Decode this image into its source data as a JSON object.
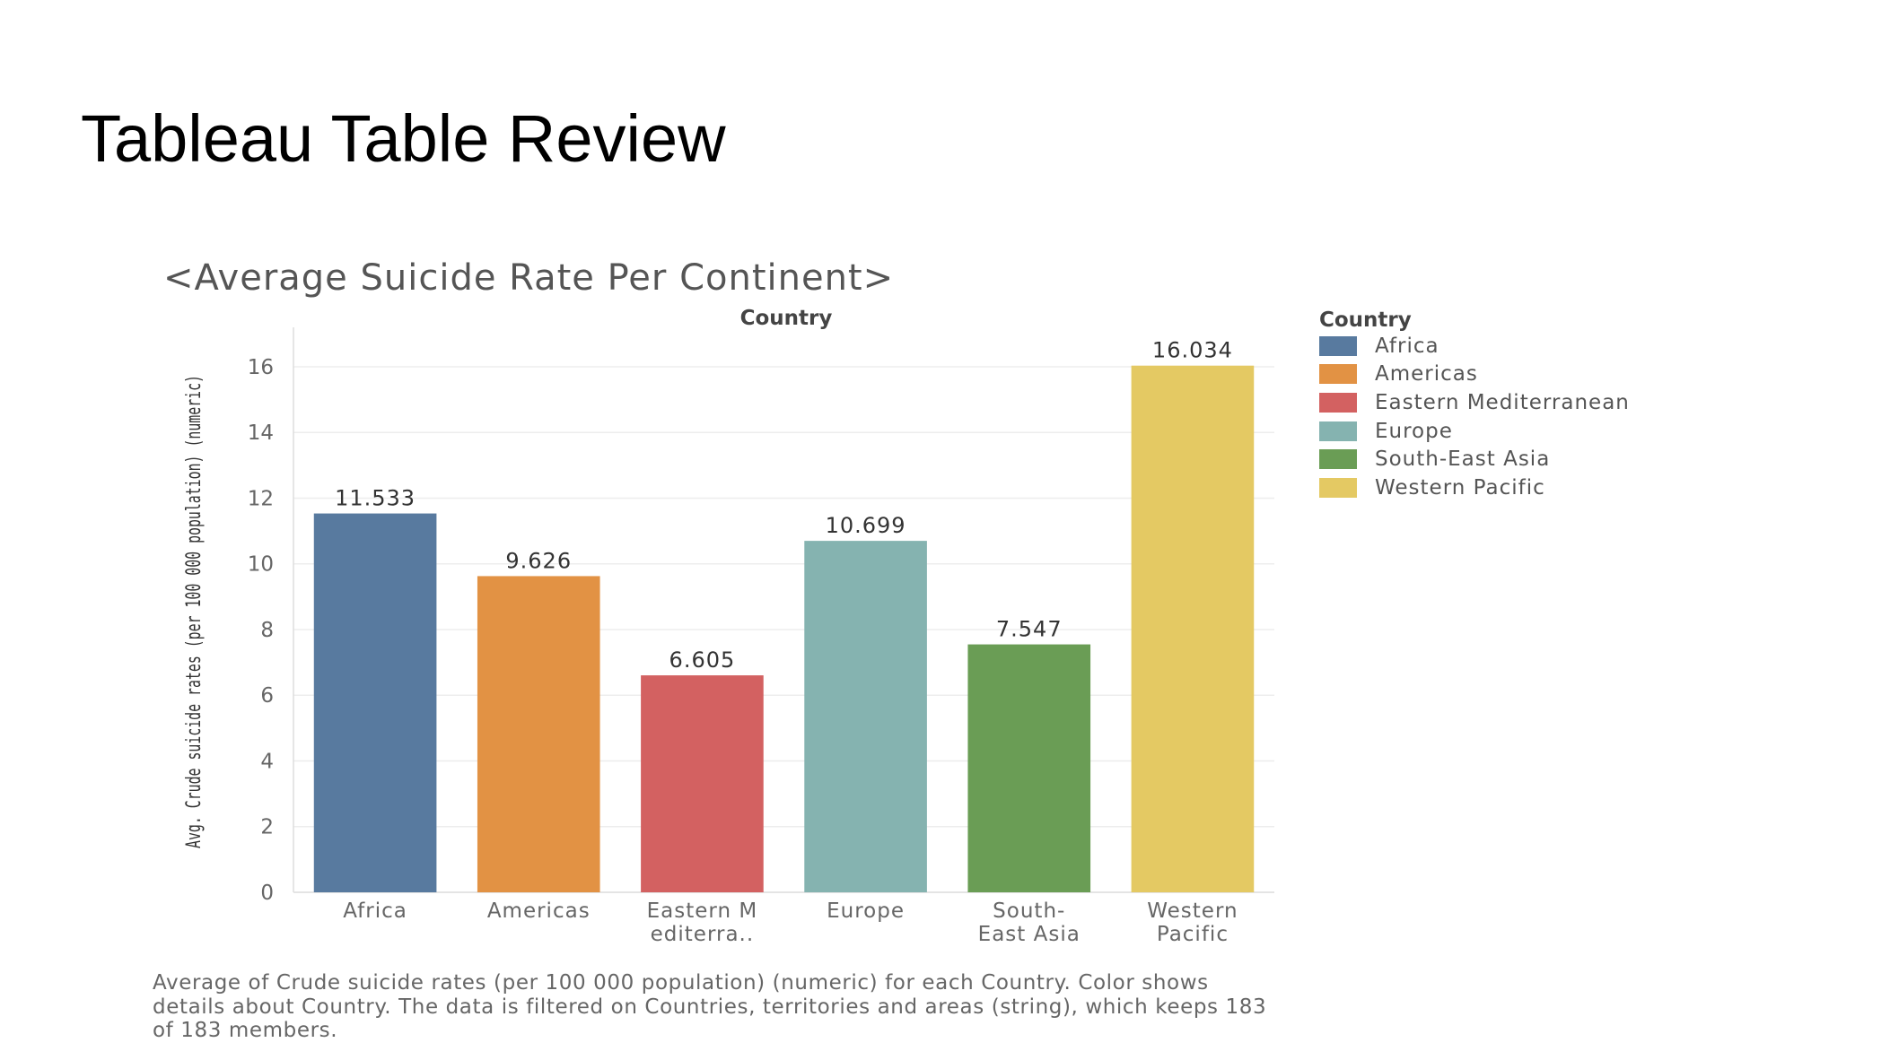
{
  "slide": {
    "title": "Tableau Table Review"
  },
  "chart_data": {
    "type": "bar",
    "title": "<Average Suicide Rate Per Continent>",
    "column_header": "Country",
    "xlabel": "",
    "ylabel": "Avg. Crude suicide rates (per 100 000 population) (numeric)",
    "categories": [
      "Africa",
      "Americas",
      "Eastern Mediterranean",
      "Europe",
      "South-East Asia",
      "Western Pacific"
    ],
    "category_tick_labels": [
      [
        "Africa"
      ],
      [
        "Americas"
      ],
      [
        "Eastern M",
        "editerra.."
      ],
      [
        "Europe"
      ],
      [
        "South-",
        "East Asia"
      ],
      [
        "Western",
        "Pacific"
      ]
    ],
    "values": [
      11.533,
      9.626,
      6.605,
      10.699,
      7.547,
      16.034
    ],
    "value_labels": [
      "11.533",
      "9.626",
      "6.605",
      "10.699",
      "7.547",
      "16.034"
    ],
    "colors": [
      "#587a9f",
      "#e29244",
      "#d36161",
      "#85b3b0",
      "#6a9d55",
      "#e4c963"
    ],
    "ylim": [
      0,
      17.2
    ],
    "yticks": [
      0,
      2,
      4,
      6,
      8,
      10,
      12,
      14,
      16
    ],
    "grid": true,
    "legend": {
      "title": "Country",
      "position": "right",
      "entries": [
        "Africa",
        "Americas",
        "Eastern Mediterranean",
        "Europe",
        "South-East Asia",
        "Western Pacific"
      ]
    },
    "caption": "Average of Crude suicide rates (per 100 000 population) (numeric) for each Country.  Color shows details about Country. The data is filtered on Countries, territories and areas (string), which keeps 183 of 183 members."
  }
}
